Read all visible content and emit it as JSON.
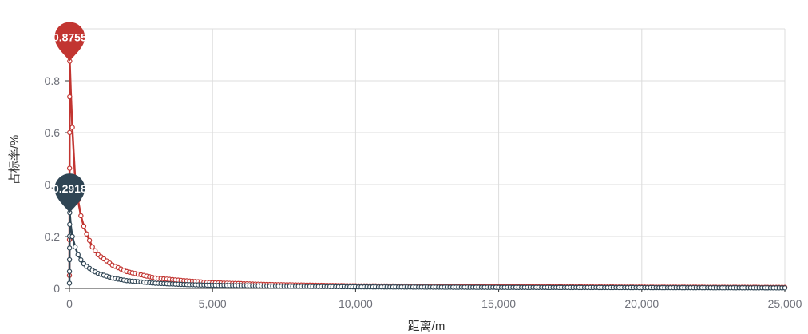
{
  "chart_data": {
    "type": "line",
    "xlabel": "距离/m",
    "ylabel": "占标率/%",
    "xlim": [
      0,
      25000
    ],
    "ylim": [
      0,
      1.0
    ],
    "x_ticks": [
      0,
      5000,
      10000,
      15000,
      20000,
      25000
    ],
    "x_tick_labels": [
      "0",
      "5,000",
      "10,000",
      "15,000",
      "20,000",
      "25,000"
    ],
    "y_ticks": [
      0,
      0.2,
      0.4,
      0.6,
      0.8
    ],
    "y_tick_labels": [
      "0",
      "0.2",
      "0.4",
      "0.6",
      "0.8"
    ],
    "grid": true,
    "marker": "hollow-circle",
    "series": [
      {
        "color": "#c23531",
        "max_label": "0.8755",
        "max_x": 10,
        "max_y": 0.8755,
        "points": [
          [
            0,
            0.05
          ],
          [
            10,
            0.8755
          ],
          [
            50,
            0.75
          ],
          [
            100,
            0.62
          ],
          [
            200,
            0.42
          ],
          [
            300,
            0.34
          ],
          [
            400,
            0.28
          ],
          [
            500,
            0.24
          ],
          [
            600,
            0.21
          ],
          [
            800,
            0.16
          ],
          [
            1000,
            0.13
          ],
          [
            1500,
            0.09
          ],
          [
            2000,
            0.065
          ],
          [
            3000,
            0.04
          ],
          [
            4000,
            0.03
          ],
          [
            5000,
            0.022
          ],
          [
            7000,
            0.015
          ],
          [
            10000,
            0.01
          ],
          [
            15000,
            0.007
          ],
          [
            20000,
            0.005
          ],
          [
            25000,
            0.004
          ]
        ]
      },
      {
        "color": "#2f4554",
        "max_label": "0.2918",
        "max_x": 10,
        "max_y": 0.2918,
        "points": [
          [
            0,
            0.02
          ],
          [
            10,
            0.2918
          ],
          [
            50,
            0.24
          ],
          [
            100,
            0.2
          ],
          [
            200,
            0.16
          ],
          [
            300,
            0.13
          ],
          [
            400,
            0.11
          ],
          [
            500,
            0.095
          ],
          [
            600,
            0.085
          ],
          [
            800,
            0.07
          ],
          [
            1000,
            0.058
          ],
          [
            1500,
            0.04
          ],
          [
            2000,
            0.03
          ],
          [
            3000,
            0.02
          ],
          [
            4000,
            0.015
          ],
          [
            5000,
            0.012
          ],
          [
            7000,
            0.009
          ],
          [
            10000,
            0.006
          ],
          [
            15000,
            0.004
          ],
          [
            20000,
            0.003
          ],
          [
            25000,
            0.002
          ]
        ]
      }
    ]
  }
}
